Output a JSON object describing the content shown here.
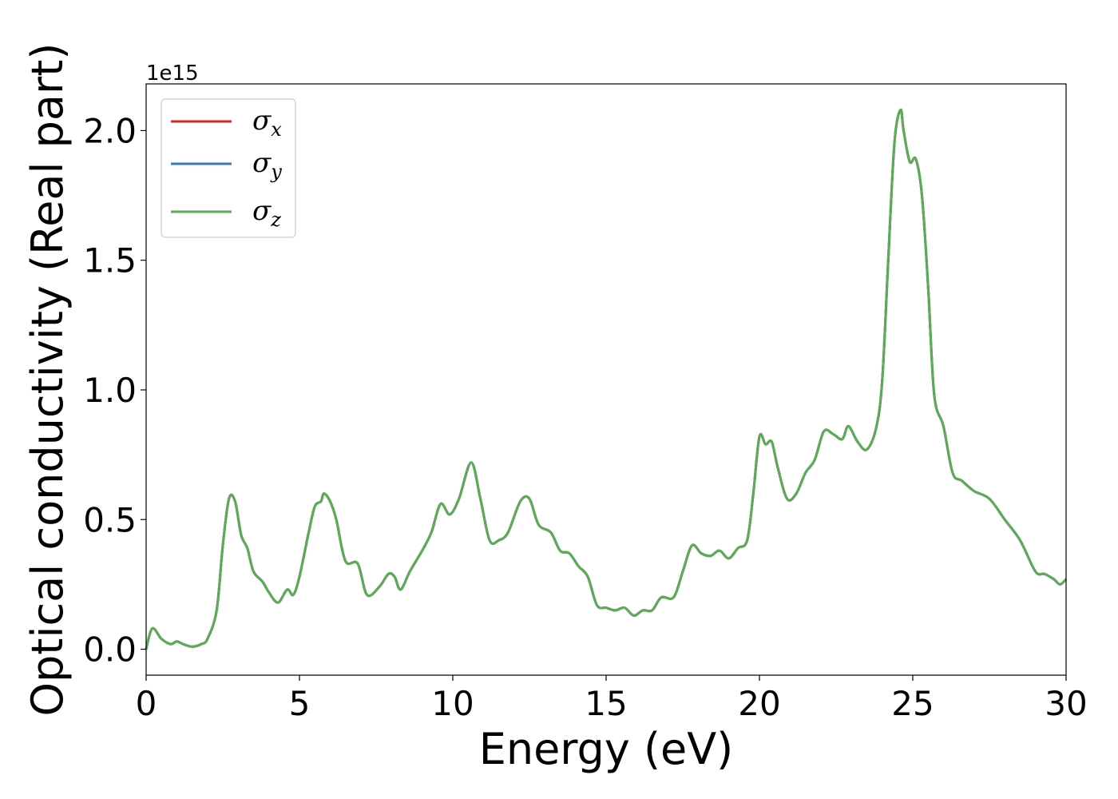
{
  "chart_data": {
    "type": "line",
    "xlabel": "Energy (eV)",
    "ylabel": "Optical conductivity (Real part)",
    "y_offset_label": "1e15",
    "xlim": [
      0,
      30
    ],
    "ylim": [
      -0.1,
      2.18
    ],
    "x_ticks": [
      0,
      5,
      10,
      15,
      20,
      25,
      30
    ],
    "y_ticks": [
      0.0,
      0.5,
      1.0,
      1.5,
      2.0
    ],
    "x_tick_labels": [
      "0",
      "5",
      "10",
      "15",
      "20",
      "25",
      "30"
    ],
    "y_tick_labels": [
      "0.0",
      "0.5",
      "1.0",
      "1.5",
      "2.0"
    ],
    "grid": false,
    "legend_position": "upper-left",
    "series": [
      {
        "name": "σ",
        "subscript": "x",
        "color": "#d62728"
      },
      {
        "name": "σ",
        "subscript": "y",
        "color": "#3a7ab8"
      },
      {
        "name": "σ",
        "subscript": "z",
        "color": "#5aad54"
      }
    ],
    "x": [
      0,
      0.2,
      0.5,
      0.8,
      1.0,
      1.2,
      1.5,
      1.8,
      2.0,
      2.3,
      2.5,
      2.7,
      2.9,
      3.1,
      3.3,
      3.5,
      3.8,
      4.0,
      4.3,
      4.6,
      4.8,
      5.0,
      5.3,
      5.5,
      5.7,
      5.8,
      6.0,
      6.2,
      6.5,
      6.9,
      7.2,
      7.6,
      7.9,
      8.1,
      8.3,
      8.6,
      9.0,
      9.3,
      9.6,
      9.9,
      10.2,
      10.6,
      10.9,
      11.2,
      11.5,
      11.8,
      12.2,
      12.5,
      12.8,
      13.2,
      13.5,
      13.8,
      14.1,
      14.4,
      14.7,
      15.0,
      15.3,
      15.6,
      15.9,
      16.2,
      16.5,
      16.8,
      17.2,
      17.5,
      17.8,
      18.1,
      18.4,
      18.7,
      19.0,
      19.3,
      19.6,
      19.8,
      20.0,
      20.2,
      20.4,
      20.6,
      20.9,
      21.2,
      21.5,
      21.8,
      22.1,
      22.4,
      22.7,
      22.9,
      23.2,
      23.5,
      23.8,
      24.0,
      24.2,
      24.4,
      24.6,
      24.7,
      24.9,
      25.1,
      25.3,
      25.5,
      25.7,
      26.0,
      26.3,
      26.6,
      27.0,
      27.5,
      28.0,
      28.5,
      29.0,
      29.3,
      29.6,
      29.8,
      30.0
    ],
    "y": [
      0.0,
      0.08,
      0.04,
      0.02,
      0.03,
      0.02,
      0.01,
      0.02,
      0.04,
      0.15,
      0.4,
      0.58,
      0.57,
      0.44,
      0.39,
      0.3,
      0.26,
      0.22,
      0.18,
      0.23,
      0.21,
      0.28,
      0.45,
      0.55,
      0.57,
      0.6,
      0.57,
      0.5,
      0.34,
      0.33,
      0.21,
      0.24,
      0.29,
      0.28,
      0.23,
      0.3,
      0.38,
      0.45,
      0.56,
      0.52,
      0.58,
      0.72,
      0.58,
      0.42,
      0.42,
      0.45,
      0.57,
      0.58,
      0.48,
      0.45,
      0.38,
      0.37,
      0.32,
      0.28,
      0.17,
      0.16,
      0.15,
      0.16,
      0.13,
      0.15,
      0.15,
      0.2,
      0.2,
      0.3,
      0.4,
      0.37,
      0.36,
      0.38,
      0.35,
      0.39,
      0.42,
      0.6,
      0.82,
      0.79,
      0.8,
      0.7,
      0.58,
      0.6,
      0.68,
      0.73,
      0.84,
      0.83,
      0.81,
      0.86,
      0.8,
      0.77,
      0.85,
      1.03,
      1.5,
      1.95,
      2.08,
      2.0,
      1.88,
      1.89,
      1.75,
      1.4,
      0.98,
      0.86,
      0.68,
      0.65,
      0.61,
      0.58,
      0.5,
      0.42,
      0.3,
      0.29,
      0.27,
      0.25,
      0.27
    ]
  }
}
